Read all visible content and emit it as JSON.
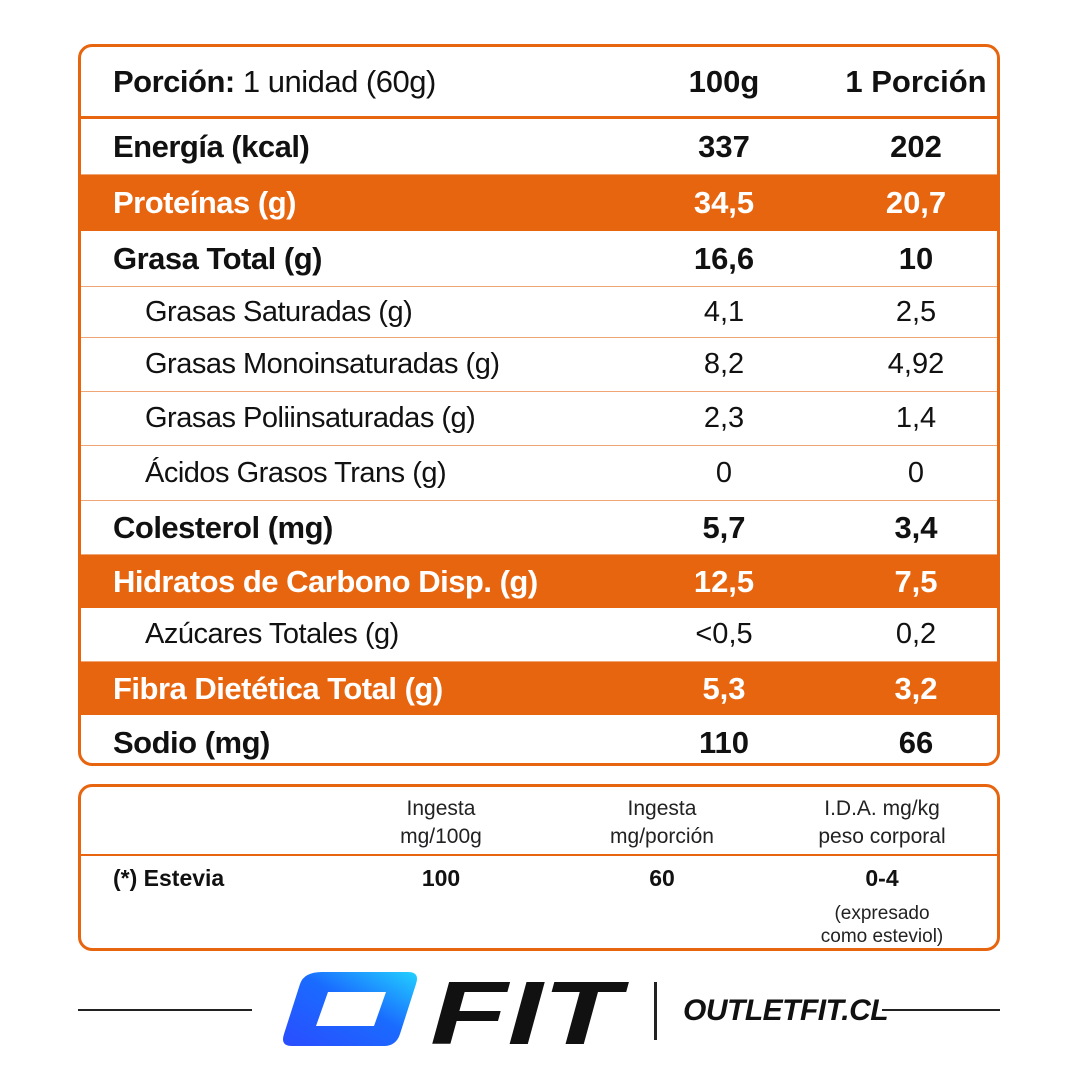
{
  "nutrition": {
    "header": {
      "label_bold": "Porción:",
      "label_value": "1 unidad (60g)",
      "col1": "100g",
      "col2": "1 Porción"
    },
    "rows": [
      {
        "label": "Energía (kcal)",
        "v100": "337",
        "vport": "202",
        "style": "bold"
      },
      {
        "label": "Proteínas (g)",
        "v100": "34,5",
        "vport": "20,7",
        "style": "highlight"
      },
      {
        "label": "Grasa Total (g)",
        "v100": "16,6",
        "vport": "10",
        "style": "bold"
      },
      {
        "label": "Grasas Saturadas (g)",
        "v100": "4,1",
        "vport": "2,5",
        "style": "sub"
      },
      {
        "label": "Grasas Monoinsaturadas (g)",
        "v100": "8,2",
        "vport": "4,92",
        "style": "sub"
      },
      {
        "label": "Grasas Poliinsaturadas (g)",
        "v100": "2,3",
        "vport": "1,4",
        "style": "sub"
      },
      {
        "label": "Ácidos Grasos Trans (g)",
        "v100": "0",
        "vport": "0",
        "style": "sub"
      },
      {
        "label": "Colesterol (mg)",
        "v100": "5,7",
        "vport": "3,4",
        "style": "bold"
      },
      {
        "label": "Hidratos de Carbono Disp. (g)",
        "v100": "12,5",
        "vport": "7,5",
        "style": "highlight"
      },
      {
        "label": "Azúcares Totales (g)",
        "v100": "<0,5",
        "vport": "0,2",
        "style": "sub"
      },
      {
        "label": "Fibra Dietética Total (g)",
        "v100": "5,3",
        "vport": "3,2",
        "style": "highlight"
      },
      {
        "label": "Sodio (mg)",
        "v100": "110",
        "vport": "66",
        "style": "bold"
      }
    ]
  },
  "intake": {
    "headers": {
      "h1_line1": "Ingesta",
      "h1_line2": "mg/100g",
      "h2_line1": "Ingesta",
      "h2_line2": "mg/porción",
      "h3_line1": "I.D.A. mg/kg",
      "h3_line2": "peso corporal"
    },
    "row": {
      "label": "(*) Estevia",
      "v100g": "100",
      "vport": "60",
      "ida": "0-4",
      "note_line1": "(expresado",
      "note_line2": "como esteviol)"
    }
  },
  "footer": {
    "brand": "FIT",
    "site": "OUTLETFIT.CL"
  },
  "colors": {
    "accent": "#e8650f",
    "logo_blue": "#1a6bff",
    "text": "#111111"
  }
}
